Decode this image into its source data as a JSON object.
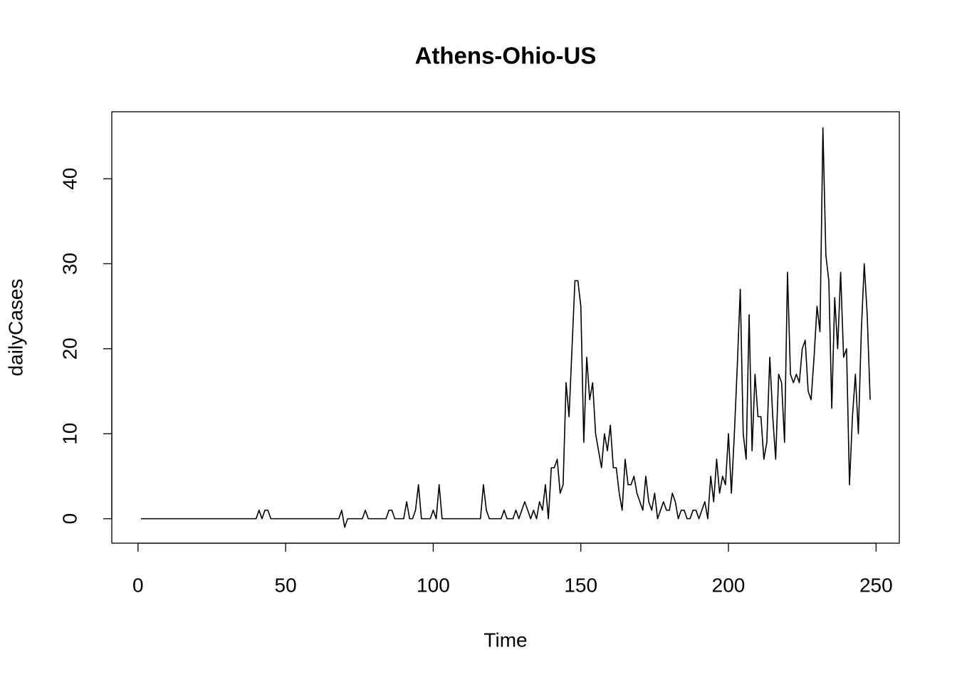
{
  "chart_data": {
    "type": "line",
    "title": "Athens-Ohio-US",
    "x_label": "Time",
    "y_label": "dailyCases",
    "x": [
      1,
      2,
      3,
      4,
      5,
      6,
      7,
      8,
      9,
      10,
      11,
      12,
      13,
      14,
      15,
      16,
      17,
      18,
      19,
      20,
      21,
      22,
      23,
      24,
      25,
      26,
      27,
      28,
      29,
      30,
      31,
      32,
      33,
      34,
      35,
      36,
      37,
      38,
      39,
      40,
      41,
      42,
      43,
      44,
      45,
      46,
      47,
      48,
      49,
      50,
      51,
      52,
      53,
      54,
      55,
      56,
      57,
      58,
      59,
      60,
      61,
      62,
      63,
      64,
      65,
      66,
      67,
      68,
      69,
      70,
      71,
      72,
      73,
      74,
      75,
      76,
      77,
      78,
      79,
      80,
      81,
      82,
      83,
      84,
      85,
      86,
      87,
      88,
      89,
      90,
      91,
      92,
      93,
      94,
      95,
      96,
      97,
      98,
      99,
      100,
      101,
      102,
      103,
      104,
      105,
      106,
      107,
      108,
      109,
      110,
      111,
      112,
      113,
      114,
      115,
      116,
      117,
      118,
      119,
      120,
      121,
      122,
      123,
      124,
      125,
      126,
      127,
      128,
      129,
      130,
      131,
      132,
      133,
      134,
      135,
      136,
      137,
      138,
      139,
      140,
      141,
      142,
      143,
      144,
      145,
      146,
      147,
      148,
      149,
      150,
      151,
      152,
      153,
      154,
      155,
      156,
      157,
      158,
      159,
      160,
      161,
      162,
      163,
      164,
      165,
      166,
      167,
      168,
      169,
      170,
      171,
      172,
      173,
      174,
      175,
      176,
      177,
      178,
      179,
      180,
      181,
      182,
      183,
      184,
      185,
      186,
      187,
      188,
      189,
      190,
      191,
      192,
      193,
      194,
      195,
      196,
      197,
      198,
      199,
      200,
      201,
      202,
      203,
      204,
      205,
      206,
      207,
      208,
      209,
      210,
      211,
      212,
      213,
      214,
      215,
      216,
      217,
      218,
      219,
      220,
      221,
      222,
      223,
      224,
      225,
      226,
      227,
      228,
      229,
      230,
      231,
      232,
      233,
      234,
      235,
      236,
      237,
      238,
      239,
      240,
      241,
      242,
      243,
      244,
      245,
      246,
      247,
      248
    ],
    "values": [
      0,
      0,
      0,
      0,
      0,
      0,
      0,
      0,
      0,
      0,
      0,
      0,
      0,
      0,
      0,
      0,
      0,
      0,
      0,
      0,
      0,
      0,
      0,
      0,
      0,
      0,
      0,
      0,
      0,
      0,
      0,
      0,
      0,
      0,
      0,
      0,
      0,
      0,
      0,
      0,
      1,
      0,
      1,
      1,
      0,
      0,
      0,
      0,
      0,
      0,
      0,
      0,
      0,
      0,
      0,
      0,
      0,
      0,
      0,
      0,
      0,
      0,
      0,
      0,
      0,
      0,
      0,
      0,
      1,
      -1,
      0,
      0,
      0,
      0,
      0,
      0,
      1,
      0,
      0,
      0,
      0,
      0,
      0,
      0,
      1,
      1,
      0,
      0,
      0,
      0,
      2,
      0,
      0,
      1,
      4,
      0,
      0,
      0,
      0,
      1,
      0,
      4,
      0,
      0,
      0,
      0,
      0,
      0,
      0,
      0,
      0,
      0,
      0,
      0,
      0,
      0,
      4,
      1,
      0,
      0,
      0,
      0,
      0,
      1,
      0,
      0,
      0,
      1,
      0,
      1,
      2,
      1,
      0,
      1,
      0,
      2,
      1,
      4,
      0,
      6,
      6,
      7,
      3,
      4,
      16,
      12,
      20,
      28,
      28,
      25,
      9,
      19,
      14,
      16,
      10,
      8,
      6,
      10,
      8,
      11,
      6,
      6,
      3,
      1,
      7,
      4,
      4,
      5,
      3,
      2,
      1,
      5,
      2,
      1,
      3,
      0,
      1,
      2,
      1,
      1,
      3,
      2,
      0,
      1,
      1,
      0,
      0,
      1,
      1,
      0,
      1,
      2,
      0,
      5,
      2,
      7,
      3,
      5,
      4,
      10,
      3,
      10,
      18,
      27,
      10,
      7,
      24,
      8,
      17,
      12,
      12,
      7,
      9,
      19,
      12,
      7,
      17,
      16,
      9,
      29,
      17,
      16,
      17,
      16,
      20,
      21,
      15,
      14,
      19,
      25,
      22,
      46,
      31,
      28,
      13,
      26,
      20,
      29,
      19,
      20,
      4,
      12,
      17,
      10,
      22,
      30,
      24,
      14
    ],
    "color": "#000000",
    "xlim": [
      -8.88,
      257.88
    ],
    "ylim": [
      -2.88,
      47.88
    ],
    "xticks": [
      0,
      50,
      100,
      150,
      200,
      250
    ],
    "yticks": [
      0,
      10,
      20,
      30,
      40
    ]
  }
}
